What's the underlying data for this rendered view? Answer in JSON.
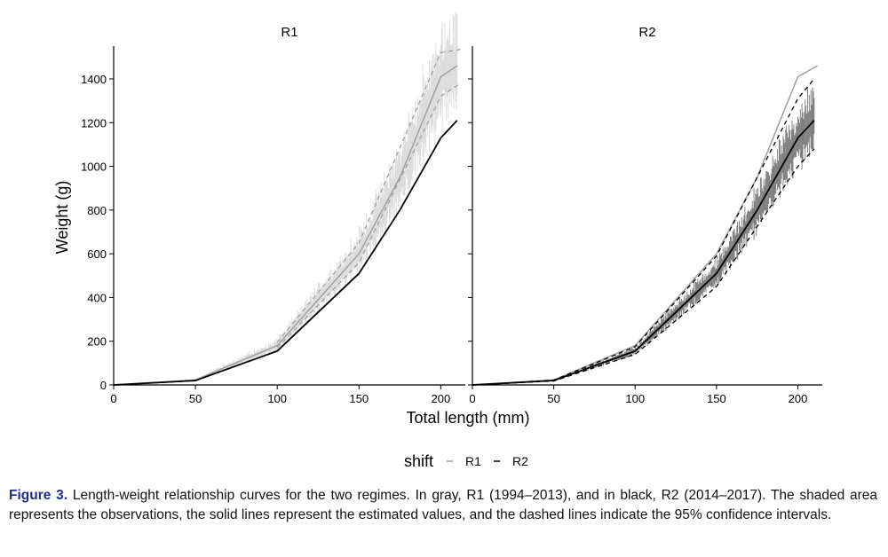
{
  "chart_data": [
    {
      "type": "line",
      "title": "R1",
      "xlabel": "Total length (mm)",
      "ylabel": "Weight (g)",
      "xlim": [
        0,
        215
      ],
      "ylim": [
        0,
        1550
      ],
      "xticks": [
        0,
        50,
        100,
        150,
        200
      ],
      "yticks": [
        0,
        200,
        400,
        600,
        800,
        1000,
        1200,
        1400
      ],
      "grid": false,
      "observations": {
        "color": "#bdbdbd",
        "x_range": [
          10,
          210
        ]
      },
      "series": [
        {
          "name": "R1",
          "x": [
            0,
            50,
            100,
            150,
            175,
            200,
            210
          ],
          "y": [
            0,
            23,
            180,
            600,
            950,
            1410,
            1460
          ],
          "color": "#a0a0a0",
          "style": "solid"
        },
        {
          "name": "R1 upper 95% CI",
          "x": [
            100,
            150,
            200,
            212
          ],
          "y": [
            195,
            650,
            1520,
            1535
          ],
          "color": "#a0a0a0",
          "style": "dashed"
        },
        {
          "name": "R1 lower 95% CI",
          "x": [
            100,
            150,
            200,
            212
          ],
          "y": [
            170,
            560,
            1320,
            1380
          ],
          "color": "#a0a0a0",
          "style": "dashed"
        },
        {
          "name": "R2",
          "x": [
            0,
            50,
            100,
            150,
            175,
            200,
            210
          ],
          "y": [
            0,
            20,
            155,
            510,
            800,
            1130,
            1210
          ],
          "color": "#000000",
          "style": "solid"
        }
      ]
    },
    {
      "type": "line",
      "title": "R2",
      "xlabel": "Total length (mm)",
      "ylabel": "Weight (g)",
      "xlim": [
        0,
        215
      ],
      "ylim": [
        0,
        1550
      ],
      "xticks": [
        0,
        50,
        100,
        150,
        200
      ],
      "yticks": [
        0,
        200,
        400,
        600,
        800,
        1000,
        1200,
        1400
      ],
      "grid": false,
      "observations": {
        "color": "#404040",
        "x_range": [
          10,
          210
        ]
      },
      "series": [
        {
          "name": "R1",
          "x": [
            0,
            50,
            100,
            150,
            175,
            200,
            212
          ],
          "y": [
            0,
            23,
            180,
            600,
            950,
            1410,
            1460
          ],
          "color": "#a0a0a0",
          "style": "solid"
        },
        {
          "name": "R2",
          "x": [
            0,
            50,
            100,
            150,
            175,
            200,
            210
          ],
          "y": [
            0,
            20,
            155,
            510,
            800,
            1130,
            1210
          ],
          "color": "#000000",
          "style": "solid"
        },
        {
          "name": "R2 upper 95% CI",
          "x": [
            0,
            50,
            100,
            150,
            200,
            210
          ],
          "y": [
            0,
            22,
            175,
            590,
            1310,
            1400
          ],
          "color": "#000000",
          "style": "dashed"
        },
        {
          "name": "R2 lower 95% CI",
          "x": [
            0,
            50,
            100,
            150,
            200,
            210
          ],
          "y": [
            0,
            18,
            140,
            450,
            1000,
            1080
          ],
          "color": "#000000",
          "style": "dashed"
        }
      ]
    }
  ],
  "legend": {
    "title": "shift",
    "items": [
      {
        "label": "R1",
        "color": "#a0a0a0"
      },
      {
        "label": "R2",
        "color": "#000000"
      }
    ]
  },
  "caption": {
    "label": "Figure 3.",
    "text": " Length-weight relationship curves for the two regimes. In gray, R1 (1994–2013), and in black, R2 (2014–2017). The shaded area represents the observations, the solid lines represent the estimated values, and the dashed lines indicate the 95% confidence intervals."
  }
}
